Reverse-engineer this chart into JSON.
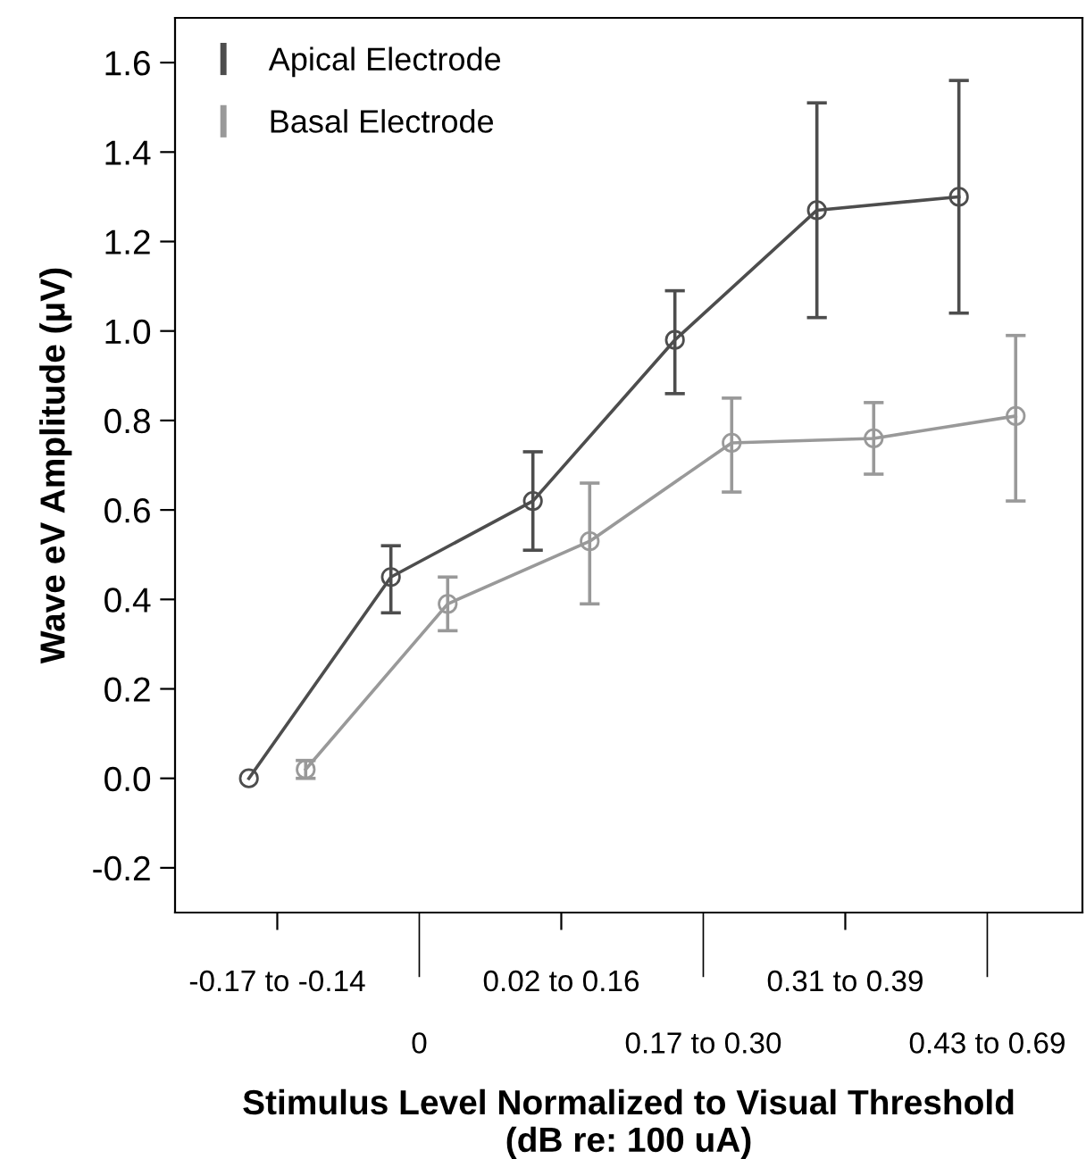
{
  "chart_data": {
    "type": "line",
    "xlabel": "Stimulus Level Normalized to Visual Threshold\n(dB re: 100 uA)",
    "ylabel": "Wave eV Amplitude (μV)",
    "categories": [
      "-0.17 to -0.14",
      "0",
      "0.02 to 0.16",
      "0.17 to 0.30",
      "0.31 to 0.39",
      "0.43 to 0.69"
    ],
    "series": [
      {
        "name": "Apical Electrode",
        "color": "#4d4d4d",
        "values": [
          0.0,
          0.45,
          0.62,
          0.98,
          1.27,
          1.3
        ],
        "errors": [
          null,
          [
            0.37,
            0.52
          ],
          [
            0.51,
            0.73
          ],
          [
            0.86,
            1.09
          ],
          [
            1.03,
            1.51
          ],
          [
            1.04,
            1.56
          ]
        ]
      },
      {
        "name": "Basal Electrode",
        "color": "#999999",
        "values": [
          0.02,
          0.39,
          0.53,
          0.75,
          0.76,
          0.81
        ],
        "errors": [
          [
            0.0,
            0.04
          ],
          [
            0.33,
            0.45
          ],
          [
            0.39,
            0.66
          ],
          [
            0.64,
            0.85
          ],
          [
            0.68,
            0.84
          ],
          [
            0.62,
            0.99
          ]
        ]
      }
    ],
    "ylim": [
      -0.3,
      1.7
    ],
    "yticks": [
      {
        "value": -0.2,
        "label": "-0.2"
      },
      {
        "value": 0,
        "label": "0.0"
      },
      0.2,
      0.4,
      0.6,
      0.8,
      {
        "value": 1,
        "label": "1.0"
      },
      1.2,
      1.4,
      1.6
    ],
    "marker": "circle",
    "line_style": "solid",
    "legend": "top left",
    "grid": false
  }
}
